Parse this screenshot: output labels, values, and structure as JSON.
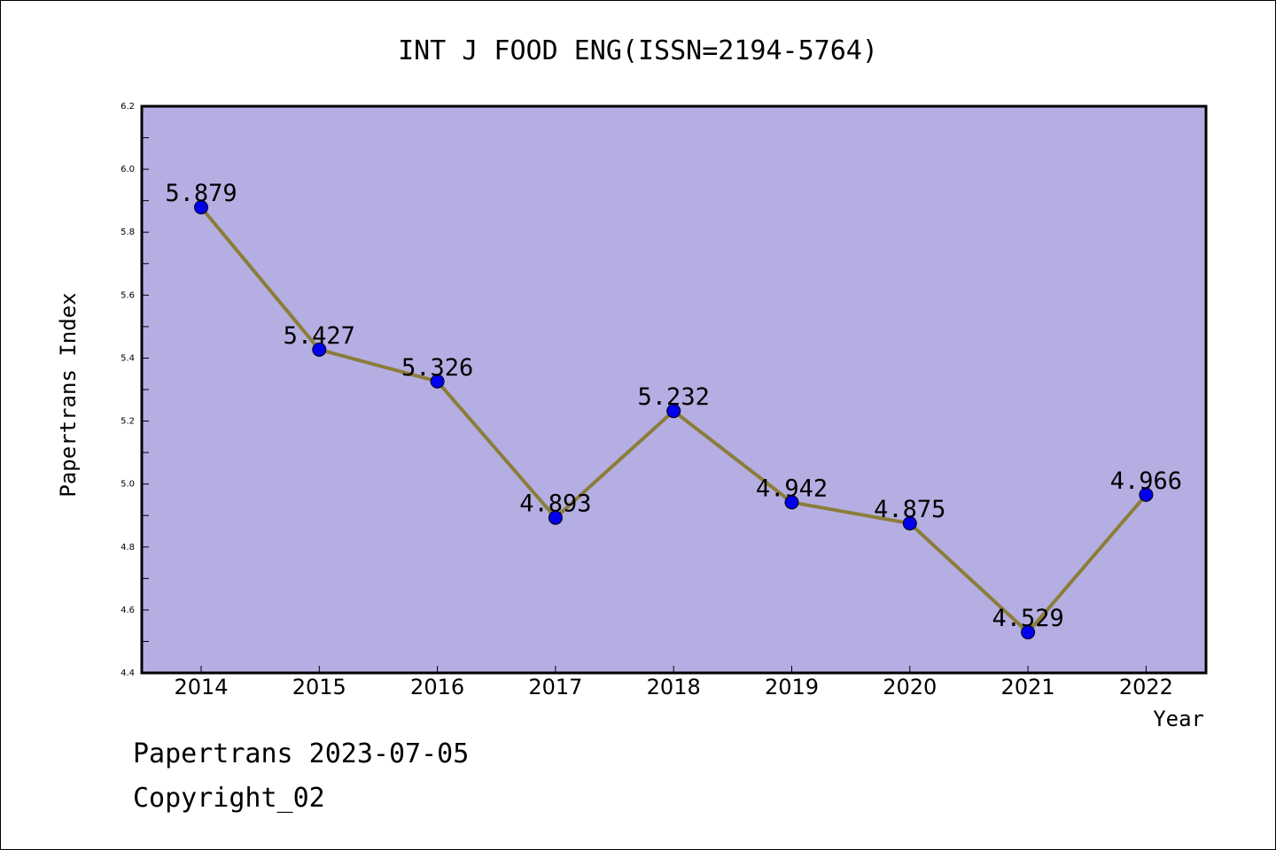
{
  "chart_data": {
    "type": "line",
    "title": "INT J FOOD ENG(ISSN=2194-5764)",
    "xlabel": "Year",
    "ylabel": "Papertrans Index",
    "categories": [
      "2014",
      "2015",
      "2016",
      "2017",
      "2018",
      "2019",
      "2020",
      "2021",
      "2022"
    ],
    "series": [
      {
        "values": [
          5.879,
          5.427,
          5.326,
          4.893,
          5.232,
          4.942,
          4.875,
          4.529,
          4.966
        ],
        "labels": [
          "5.879",
          "5.427",
          "5.326",
          "4.893",
          "5.232",
          "4.942",
          "4.875",
          "4.529",
          "4.966"
        ]
      }
    ],
    "ylim": [
      4.4,
      6.2
    ],
    "yticks": [
      "4.4",
      "4.6",
      "4.8",
      "5.0",
      "5.2",
      "5.4",
      "5.6",
      "5.8",
      "6.0",
      "6.2"
    ],
    "grid": false,
    "colors": {
      "plot_background": "#b5aee2",
      "line": "#8b7d3a",
      "marker": "#0000ee"
    }
  },
  "footer": {
    "line1": "Papertrans 2023-07-05",
    "line2": "Copyright_02"
  }
}
